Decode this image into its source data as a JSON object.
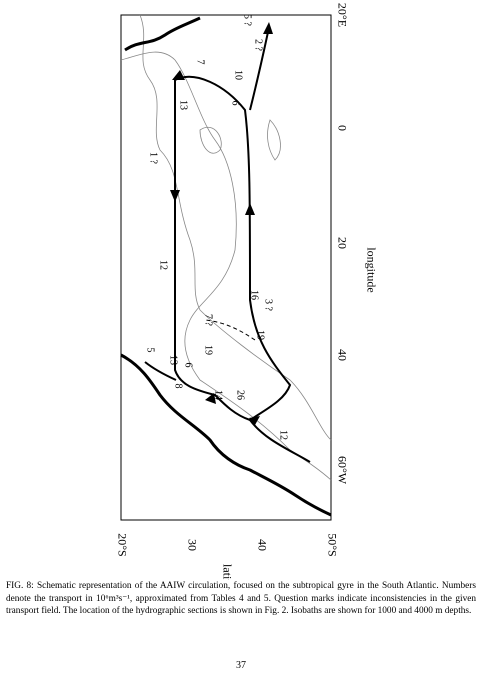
{
  "figure": {
    "lon_ticks": [
      "20°E",
      "0",
      "20",
      "40",
      "60°W"
    ],
    "lon_label": "longitude",
    "lat_ticks": [
      "20°S",
      "30",
      "40",
      "50°S"
    ],
    "lat_label": "latitude",
    "labels": [
      "5 ?",
      "2 ?",
      "7",
      "10",
      "13",
      "6",
      "1 ?",
      "12",
      "16",
      "3 ?",
      "7 ?",
      "19",
      "5",
      "13",
      "19",
      "6",
      "8",
      "14",
      "26",
      "12"
    ]
  },
  "caption": "FIG. 8: Schematic representation of the AAIW circulation, focused on the subtropical gyre in the South Atlantic. Numbers denote the transport in 10⁶m³s⁻¹, approximated from Tables 4 and 5. Question marks indicate inconsistencies in the given transport field. The location of the hydrographic sections is shown in Fig. 2. Isobaths are shown for 1000 and 4000 m depths.",
  "page_number": "37"
}
